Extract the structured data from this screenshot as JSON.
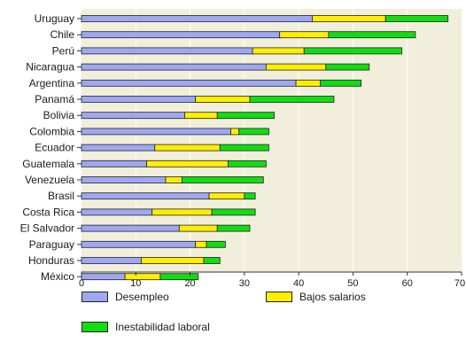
{
  "chart_data": {
    "type": "bar",
    "orientation": "horizontal",
    "stacked": true,
    "categories": [
      "Uruguay",
      "Chile",
      "Perú",
      "Nicaragua",
      "Argentina",
      "Panamá",
      "Bolivia",
      "Colombia",
      "Ecuador",
      "Guatemala",
      "Venezuela",
      "Brasil",
      "Costa Rica",
      "El Salvador",
      "Paraguay",
      "Honduras",
      "México"
    ],
    "series": [
      {
        "name": "Desempleo",
        "color": "#9ea8f2",
        "values": [
          42.5,
          36.5,
          31.5,
          34,
          39.5,
          21,
          19,
          27.5,
          13.5,
          12,
          15.5,
          23.5,
          13,
          18,
          21,
          11,
          8
        ]
      },
      {
        "name": "Bajos salarios",
        "color": "#ffee00",
        "values": [
          13.5,
          9,
          9.5,
          11,
          4.5,
          10,
          6,
          1.5,
          12,
          15,
          3,
          6.5,
          11,
          7,
          2,
          11.5,
          6.5
        ]
      },
      {
        "name": "Inestabilidad laboral",
        "color": "#11dd11",
        "values": [
          11.5,
          16,
          18,
          8,
          7.5,
          15.5,
          10.5,
          5.5,
          9,
          7,
          15,
          2,
          8,
          6,
          3.5,
          3,
          7
        ]
      }
    ],
    "x_ticks": [
      "0",
      "10",
      "20",
      "30",
      "40",
      "50",
      "60",
      "70"
    ],
    "xlim": [
      0,
      70
    ],
    "plot_background": "#f1efdb",
    "legend_placement": "bottom"
  }
}
